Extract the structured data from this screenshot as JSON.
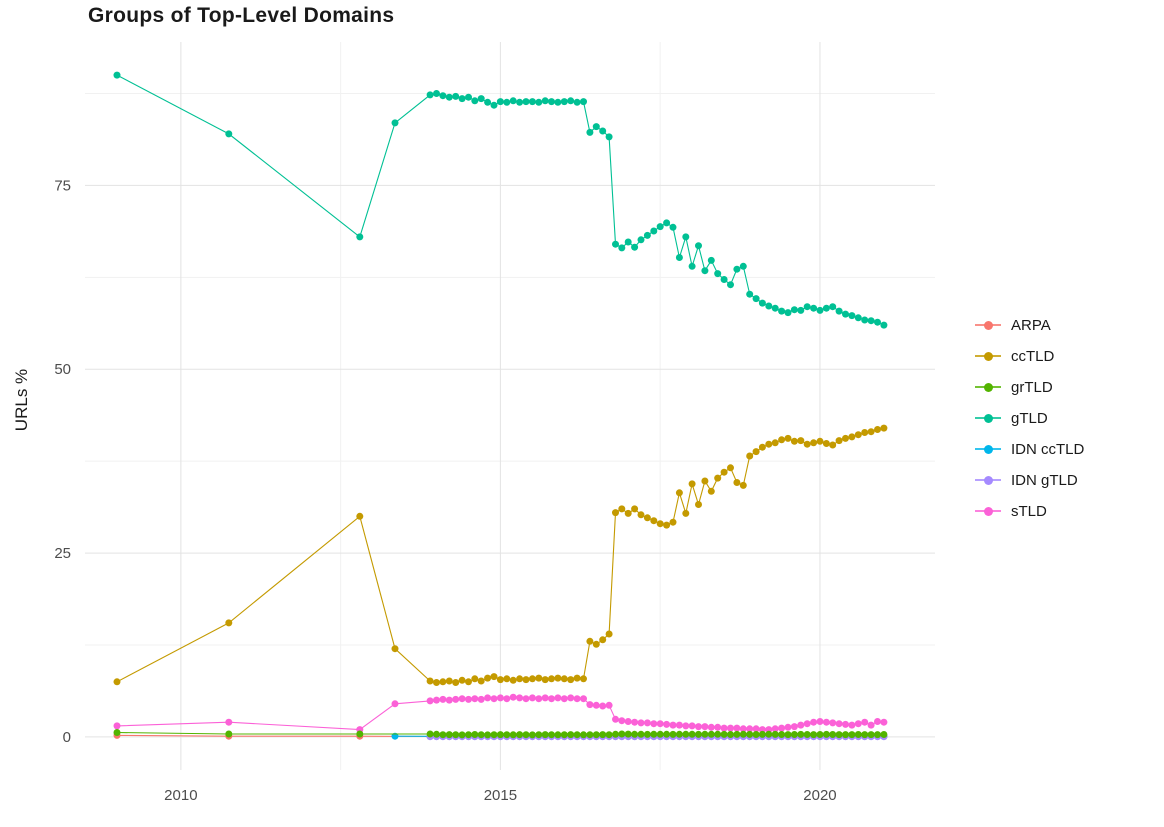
{
  "page": {
    "background": "#ffffff"
  },
  "chart_data": {
    "type": "line",
    "title": "Groups of Top-Level Domains",
    "xlabel": "",
    "ylabel": "URLs %",
    "grid": true,
    "legend_position": "right",
    "xlim": [
      2008.5,
      2021.8
    ],
    "ylim": [
      -4.5,
      94.5
    ],
    "x_ticks": [
      2010,
      2015,
      2020
    ],
    "x_tick_labels": [
      "2010",
      "2015",
      "2020"
    ],
    "x_minor_ticks": [
      2012.5,
      2017.5
    ],
    "y_ticks": [
      0,
      25,
      50,
      75
    ],
    "y_tick_labels": [
      "0",
      "25",
      "50",
      "75"
    ],
    "y_minor_ticks": [
      12.5,
      37.5,
      62.5,
      87.5
    ],
    "colors": {
      "grid_major": "#e3e3e3",
      "grid_minor": "#f1f1f1",
      "tick_label": "#4d4d4d"
    },
    "draw_order": [
      0,
      4,
      5,
      1,
      3,
      6,
      2
    ],
    "series": [
      {
        "name": "ARPA",
        "color": "#F8766D",
        "early": [
          [
            2009.0,
            0.2
          ],
          [
            2010.75,
            0.1
          ],
          [
            2012.8,
            0.1
          ]
        ],
        "dense": {
          "start": 2013.9,
          "step": 0.1,
          "count": 72,
          "const": 0.05
        }
      },
      {
        "name": "ccTLD",
        "color": "#C49A00",
        "early": [
          [
            2009.0,
            7.5
          ],
          [
            2010.75,
            15.5
          ],
          [
            2012.8,
            30.0
          ],
          [
            2013.35,
            12.0
          ]
        ],
        "dense": {
          "start": 2013.9,
          "step": 0.1,
          "values": [
            7.6,
            7.4,
            7.5,
            7.6,
            7.4,
            7.7,
            7.5,
            7.9,
            7.6,
            8.0,
            8.2,
            7.8,
            7.9,
            7.7,
            7.9,
            7.8,
            7.9,
            8.0,
            7.8,
            7.9,
            8.0,
            7.9,
            7.8,
            8.0,
            7.9,
            13.0,
            12.6,
            13.2,
            14.0,
            30.5,
            31.0,
            30.4,
            31.0,
            30.2,
            29.8,
            29.4,
            29.0,
            28.8,
            29.2,
            33.2,
            30.4,
            34.4,
            31.6,
            34.8,
            33.4,
            35.2,
            36.0,
            36.6,
            34.6,
            34.2,
            38.2,
            38.8,
            39.4,
            39.8,
            40.0,
            40.4,
            40.6,
            40.2,
            40.3,
            39.8,
            40.0,
            40.2,
            39.9,
            39.7,
            40.3,
            40.6,
            40.8,
            41.1,
            41.4,
            41.5,
            41.8,
            42.0
          ]
        }
      },
      {
        "name": "grTLD",
        "color": "#53B400",
        "early": [
          [
            2009.0,
            0.6
          ],
          [
            2010.75,
            0.4
          ],
          [
            2012.8,
            0.4
          ]
        ],
        "dense": {
          "start": 2013.9,
          "step": 0.1,
          "values": [
            0.4,
            0.35,
            0.3,
            0.32,
            0.3,
            0.28,
            0.3,
            0.33,
            0.3,
            0.28,
            0.3,
            0.32,
            0.3,
            0.29,
            0.31,
            0.3,
            0.28,
            0.3,
            0.32,
            0.3,
            0.29,
            0.3,
            0.31,
            0.3,
            0.29,
            0.3,
            0.3,
            0.31,
            0.3,
            0.35,
            0.4,
            0.38,
            0.36,
            0.35,
            0.34,
            0.35,
            0.36,
            0.35,
            0.34,
            0.35,
            0.36,
            0.35,
            0.34,
            0.35,
            0.36,
            0.35,
            0.34,
            0.33,
            0.34,
            0.35,
            0.34,
            0.33,
            0.34,
            0.35,
            0.34,
            0.33,
            0.32,
            0.33,
            0.34,
            0.33,
            0.32,
            0.33,
            0.34,
            0.33,
            0.32,
            0.31,
            0.32,
            0.33,
            0.32,
            0.31,
            0.32,
            0.33
          ]
        }
      },
      {
        "name": "gTLD",
        "color": "#00C094",
        "early": [
          [
            2009.0,
            90.0
          ],
          [
            2010.75,
            82.0
          ],
          [
            2012.8,
            68.0
          ],
          [
            2013.35,
            83.5
          ]
        ],
        "dense": {
          "start": 2013.9,
          "step": 0.1,
          "values": [
            87.3,
            87.5,
            87.2,
            87.0,
            87.1,
            86.8,
            87.0,
            86.5,
            86.8,
            86.3,
            85.9,
            86.4,
            86.3,
            86.5,
            86.3,
            86.4,
            86.4,
            86.3,
            86.5,
            86.4,
            86.3,
            86.4,
            86.5,
            86.3,
            86.4,
            82.2,
            83.0,
            82.4,
            81.6,
            67.0,
            66.5,
            67.3,
            66.6,
            67.6,
            68.2,
            68.8,
            69.4,
            69.9,
            69.3,
            65.2,
            68.0,
            64.0,
            66.8,
            63.4,
            64.8,
            63.0,
            62.2,
            61.5,
            63.6,
            64.0,
            60.2,
            59.6,
            59.0,
            58.6,
            58.3,
            57.9,
            57.7,
            58.1,
            58.0,
            58.5,
            58.3,
            58.0,
            58.3,
            58.5,
            57.9,
            57.5,
            57.3,
            57.0,
            56.7,
            56.6,
            56.4,
            56.0
          ]
        }
      },
      {
        "name": "IDN ccTLD",
        "color": "#00B6EB",
        "early": [
          [
            2013.35,
            0.1
          ]
        ],
        "dense": {
          "start": 2013.9,
          "step": 0.1,
          "count": 72,
          "const": 0.08
        }
      },
      {
        "name": "IDN gTLD",
        "color": "#A58AFF",
        "early": [],
        "dense": {
          "start": 2013.9,
          "step": 0.1,
          "count": 72,
          "const": 0.03
        }
      },
      {
        "name": "sTLD",
        "color": "#FB61D7",
        "early": [
          [
            2009.0,
            1.5
          ],
          [
            2010.75,
            2.0
          ],
          [
            2012.8,
            1.0
          ],
          [
            2013.35,
            4.5
          ]
        ],
        "dense": {
          "start": 2013.9,
          "step": 0.1,
          "values": [
            4.9,
            5.0,
            5.1,
            5.0,
            5.1,
            5.2,
            5.1,
            5.2,
            5.1,
            5.3,
            5.2,
            5.3,
            5.2,
            5.4,
            5.3,
            5.2,
            5.3,
            5.2,
            5.3,
            5.2,
            5.3,
            5.2,
            5.3,
            5.2,
            5.2,
            4.4,
            4.3,
            4.2,
            4.3,
            2.4,
            2.2,
            2.1,
            2.0,
            1.9,
            1.9,
            1.8,
            1.8,
            1.7,
            1.6,
            1.6,
            1.5,
            1.5,
            1.4,
            1.4,
            1.3,
            1.3,
            1.2,
            1.2,
            1.2,
            1.1,
            1.1,
            1.1,
            1.0,
            1.0,
            1.1,
            1.2,
            1.3,
            1.4,
            1.6,
            1.8,
            2.0,
            2.1,
            2.0,
            1.9,
            1.8,
            1.7,
            1.6,
            1.8,
            2.0,
            1.6,
            2.1,
            2.0
          ]
        }
      }
    ]
  }
}
